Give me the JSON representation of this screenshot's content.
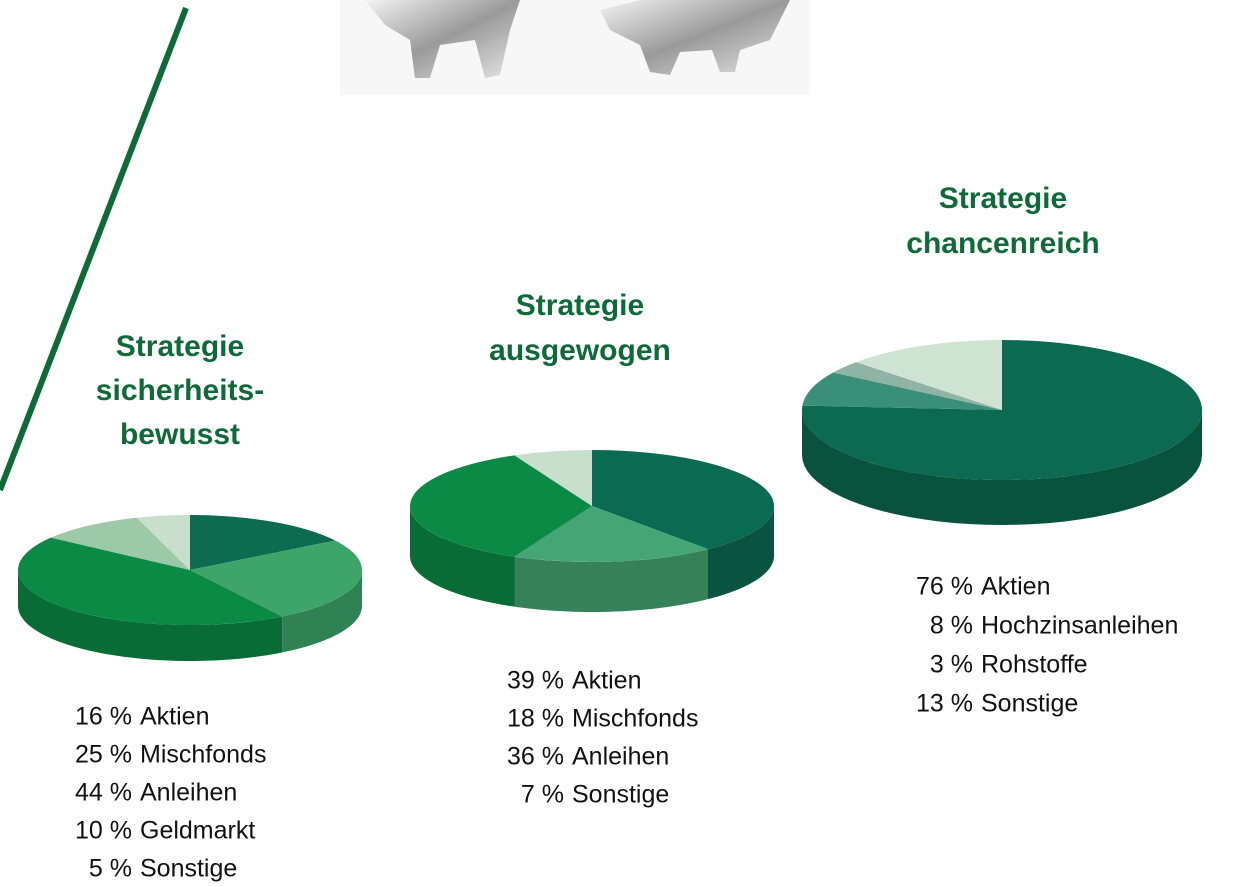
{
  "chart_data": [
    {
      "type": "pie3d",
      "title": [
        "Strategie",
        "sicherheits-",
        "bewusst"
      ],
      "categories": [
        "Aktien",
        "Mischfonds",
        "Anleihen",
        "Geldmarkt",
        "Sonstige"
      ],
      "values": [
        16,
        25,
        44,
        10,
        5
      ],
      "value_labels": [
        "16 %",
        "25 %",
        "44 %",
        "10 %",
        "5 %"
      ],
      "colors": [
        "#0d6b50",
        "#3da56a",
        "#0a8a45",
        "#9ccaa8",
        "#c8dfcc"
      ]
    },
    {
      "type": "pie3d",
      "title": [
        "Strategie",
        "ausgewogen"
      ],
      "categories": [
        "Aktien",
        "Mischfonds",
        "Anleihen",
        "Sonstige"
      ],
      "values": [
        39,
        18,
        36,
        7
      ],
      "value_labels": [
        "39 %",
        "18 %",
        "36 %",
        "7 %"
      ],
      "colors": [
        "#0b6a52",
        "#45a574",
        "#0a8a45",
        "#c8dfcc"
      ]
    },
    {
      "type": "pie3d",
      "title": [
        "Strategie",
        "chancenreich"
      ],
      "categories": [
        "Aktien",
        "Hochzinsanleihen",
        "Rohstoffe",
        "Sonstige"
      ],
      "values": [
        76,
        8,
        3,
        13
      ],
      "value_labels": [
        "76 %",
        "8 %",
        "3 %",
        "13 %"
      ],
      "colors": [
        "#0b6a4f",
        "#3a8f78",
        "#8fb3a5",
        "#cfe3d2"
      ]
    }
  ]
}
